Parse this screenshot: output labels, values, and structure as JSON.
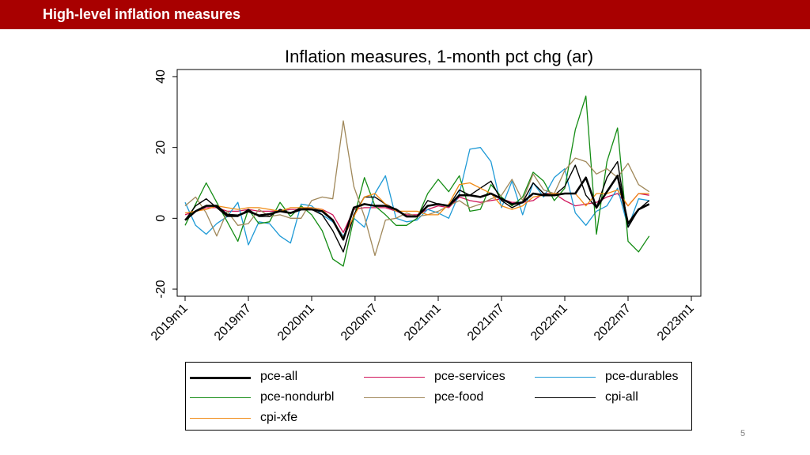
{
  "slide": {
    "title": "High-level inflation measures",
    "page_number": "5"
  },
  "colors": {
    "header": "#a80000"
  },
  "chart_data": {
    "type": "line",
    "title": "Inflation measures, 1-month pct chg (ar)",
    "xlabel": "",
    "ylabel": "",
    "xlim": [
      0,
      48
    ],
    "ylim": [
      -22,
      42
    ],
    "yticks": [
      -20,
      0,
      20,
      40
    ],
    "ytick_labels": [
      "-20",
      "0",
      "20",
      "40"
    ],
    "xticks": [
      0,
      6,
      12,
      18,
      24,
      30,
      36,
      42,
      48
    ],
    "xtick_labels": [
      "2019m1",
      "2019m7",
      "2020m1",
      "2020m7",
      "2021m1",
      "2021m7",
      "2022m1",
      "2022m7",
      "2023m1"
    ],
    "grid": false,
    "legend_position": "bottom",
    "series": [
      {
        "name": "pce-all",
        "color": "#000000",
        "width": 2.6,
        "values": [
          -0.5,
          2.0,
          3.5,
          3.5,
          1.0,
          0.8,
          2.0,
          0.8,
          1.2,
          2.0,
          1.5,
          2.5,
          2.5,
          2.0,
          -0.5,
          -6.0,
          3.0,
          4.0,
          3.5,
          3.5,
          2.5,
          0.5,
          0.5,
          3.5,
          4.0,
          3.5,
          6.5,
          6.5,
          6.0,
          7.0,
          5.5,
          4.0,
          4.5,
          7.0,
          6.5,
          6.5,
          7.0,
          7.0,
          11.5,
          3.0,
          7.5,
          12.0,
          -1.5,
          2.5,
          4.0
        ]
      },
      {
        "name": "pce-services",
        "color": "#d0145a",
        "width": 1.3,
        "values": [
          1.0,
          2.0,
          3.0,
          3.0,
          2.0,
          2.0,
          2.5,
          2.0,
          2.0,
          2.0,
          2.5,
          2.5,
          3.0,
          2.5,
          1.0,
          -4.0,
          2.5,
          3.0,
          3.0,
          3.0,
          2.0,
          1.0,
          1.0,
          2.5,
          3.5,
          3.0,
          6.0,
          5.0,
          4.5,
          5.0,
          5.5,
          4.5,
          4.5,
          5.0,
          7.0,
          7.0,
          5.0,
          3.5,
          4.0,
          4.5,
          6.0,
          7.0,
          3.5,
          7.0,
          6.5
        ]
      },
      {
        "name": "pce-durables",
        "color": "#1f9ad6",
        "width": 1.3,
        "values": [
          4.5,
          -2.0,
          -4.5,
          -1.5,
          0.5,
          4.5,
          -7.5,
          -1.0,
          -1.5,
          -5.0,
          -7.0,
          4.0,
          3.5,
          1.0,
          -1.0,
          -5.0,
          0.0,
          -2.5,
          7.0,
          12.0,
          0.0,
          -1.0,
          -0.5,
          2.5,
          1.5,
          0.0,
          7.0,
          19.5,
          20.0,
          16.0,
          3.0,
          10.5,
          1.0,
          10.0,
          6.0,
          11.5,
          14.0,
          1.5,
          -2.0,
          2.0,
          3.5,
          8.5,
          -2.5,
          5.5,
          5.0
        ]
      },
      {
        "name": "pce-nondurbl",
        "color": "#148c14",
        "width": 1.3,
        "values": [
          -2.0,
          4.0,
          10.0,
          4.5,
          -1.0,
          -6.5,
          2.5,
          -1.5,
          -1.0,
          4.5,
          0.5,
          3.5,
          1.0,
          -3.5,
          -11.5,
          -13.5,
          0.0,
          11.5,
          3.5,
          1.0,
          -2.0,
          -2.0,
          0.0,
          7.0,
          11.0,
          7.5,
          12.0,
          2.0,
          2.5,
          9.5,
          6.0,
          3.5,
          6.0,
          13.0,
          10.5,
          5.0,
          8.5,
          25.0,
          34.5,
          -4.5,
          16.0,
          25.5,
          -6.5,
          -9.5,
          -5.0
        ]
      },
      {
        "name": "pce-food",
        "color": "#a0885a",
        "width": 1.3,
        "values": [
          3.5,
          6.0,
          1.5,
          -5.0,
          2.0,
          -2.0,
          -1.5,
          2.5,
          0.5,
          1.0,
          0.0,
          0.0,
          5.0,
          6.0,
          5.5,
          27.5,
          9.0,
          0.5,
          -10.5,
          -0.5,
          0.0,
          1.5,
          0.5,
          1.0,
          2.0,
          3.5,
          5.0,
          3.0,
          4.0,
          5.5,
          6.5,
          11.0,
          5.0,
          12.5,
          8.0,
          7.0,
          13.5,
          17.0,
          16.0,
          12.5,
          14.0,
          11.5,
          15.5,
          9.5,
          7.5
        ]
      },
      {
        "name": "cpi-all",
        "color": "#000000",
        "width": 1.4,
        "values": [
          -0.5,
          3.5,
          5.5,
          3.0,
          0.5,
          0.5,
          2.5,
          0.5,
          0.5,
          2.5,
          1.5,
          3.0,
          2.5,
          1.0,
          -3.5,
          -9.5,
          1.0,
          6.0,
          6.0,
          4.0,
          2.5,
          0.5,
          0.5,
          5.0,
          4.0,
          3.5,
          8.0,
          6.5,
          8.5,
          10.5,
          5.0,
          3.0,
          4.5,
          10.0,
          7.0,
          6.5,
          9.0,
          15.0,
          6.5,
          3.0,
          11.5,
          16.0,
          -2.5,
          2.5,
          5.0
        ]
      },
      {
        "name": "cpi-xfe",
        "color": "#f08a14",
        "width": 1.3,
        "values": [
          1.5,
          2.0,
          2.5,
          3.5,
          3.0,
          2.5,
          3.0,
          3.0,
          2.5,
          2.0,
          3.0,
          3.0,
          3.0,
          2.5,
          -0.5,
          -5.5,
          0.5,
          6.0,
          7.0,
          4.0,
          2.0,
          2.0,
          2.0,
          1.0,
          1.0,
          4.0,
          9.5,
          10.0,
          8.5,
          7.0,
          3.5,
          2.5,
          3.5,
          6.0,
          6.5,
          7.0,
          7.0,
          7.0,
          3.5,
          7.0,
          7.0,
          8.0,
          3.5,
          7.0,
          7.0
        ]
      }
    ]
  }
}
